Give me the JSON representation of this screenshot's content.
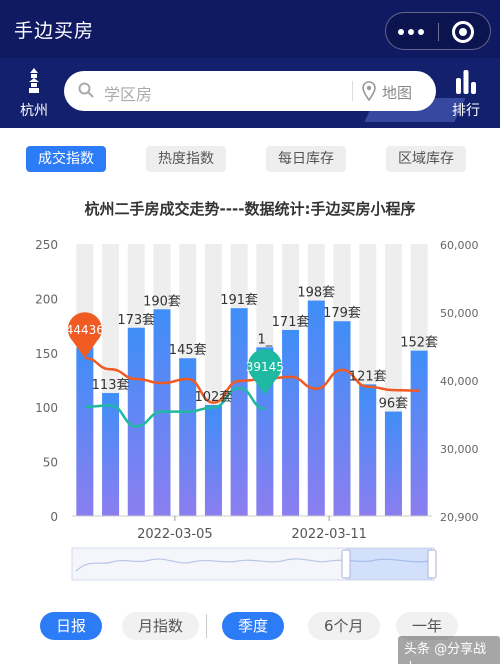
{
  "header": {
    "title": "手边买房"
  },
  "nav": {
    "city": "杭州",
    "search_placeholder": "学区房",
    "map_label": "地图",
    "rank_label": "排行"
  },
  "tabs": [
    {
      "label": "成交指数",
      "active": true
    },
    {
      "label": "热度指数",
      "active": false
    },
    {
      "label": "每日库存",
      "active": false
    },
    {
      "label": "区域库存",
      "active": false
    }
  ],
  "chart_data": {
    "type": "bar",
    "title": "杭州二手房成交走势----数据统计:手边买房小程序",
    "left_axis": {
      "ticks": [
        "250",
        "200",
        "150",
        "100",
        "50",
        "0"
      ],
      "range": [
        0,
        250
      ]
    },
    "right_axis": {
      "ticks": [
        "60,000",
        "50,000",
        "40,000",
        "30,000",
        "20,900"
      ],
      "range": [
        20900,
        60000
      ]
    },
    "x_tick_labels": [
      "2022-03-05",
      "2022-03-11"
    ],
    "bars": [
      {
        "value": 155,
        "label": "1_"
      },
      {
        "value": 113,
        "label": "113套"
      },
      {
        "value": 173,
        "label": "173套"
      },
      {
        "value": 190,
        "label": "190套"
      },
      {
        "value": 145,
        "label": "145套"
      },
      {
        "value": 102,
        "label": "102套"
      },
      {
        "value": 191,
        "label": "191套"
      },
      {
        "value": 155,
        "label": "1_"
      },
      {
        "value": 171,
        "label": "171套"
      },
      {
        "value": 198,
        "label": "198套"
      },
      {
        "value": 179,
        "label": "179套"
      },
      {
        "value": 121,
        "label": "121套"
      },
      {
        "value": 96,
        "label": "96套"
      },
      {
        "value": 152,
        "label": "152套"
      }
    ],
    "orange_series": [
      43600,
      42000,
      40600,
      40000,
      40600,
      37200,
      40300,
      40600,
      40900,
      39200,
      41900,
      39500,
      39000,
      38900
    ],
    "teal_series": [
      36600,
      36800,
      33800,
      35900,
      35900,
      36500,
      39300,
      36300
    ],
    "markers": [
      {
        "label": "44436",
        "color": "#f05a23"
      },
      {
        "label": "39145",
        "color": "#1eb9a0"
      }
    ]
  },
  "bottom": {
    "period_pills": [
      {
        "label": "日报",
        "active": true
      },
      {
        "label": "月指数",
        "active": false
      }
    ],
    "range_pills": [
      {
        "label": "季度",
        "active": true
      },
      {
        "label": "6个月",
        "active": false
      },
      {
        "label": "一年",
        "active": false
      }
    ]
  },
  "credit": "头条 @分享战士",
  "colors": {
    "nav": "#0f1a63",
    "accent": "#2b7cf6",
    "orange": "#f05a23",
    "teal": "#1eb9a0"
  }
}
